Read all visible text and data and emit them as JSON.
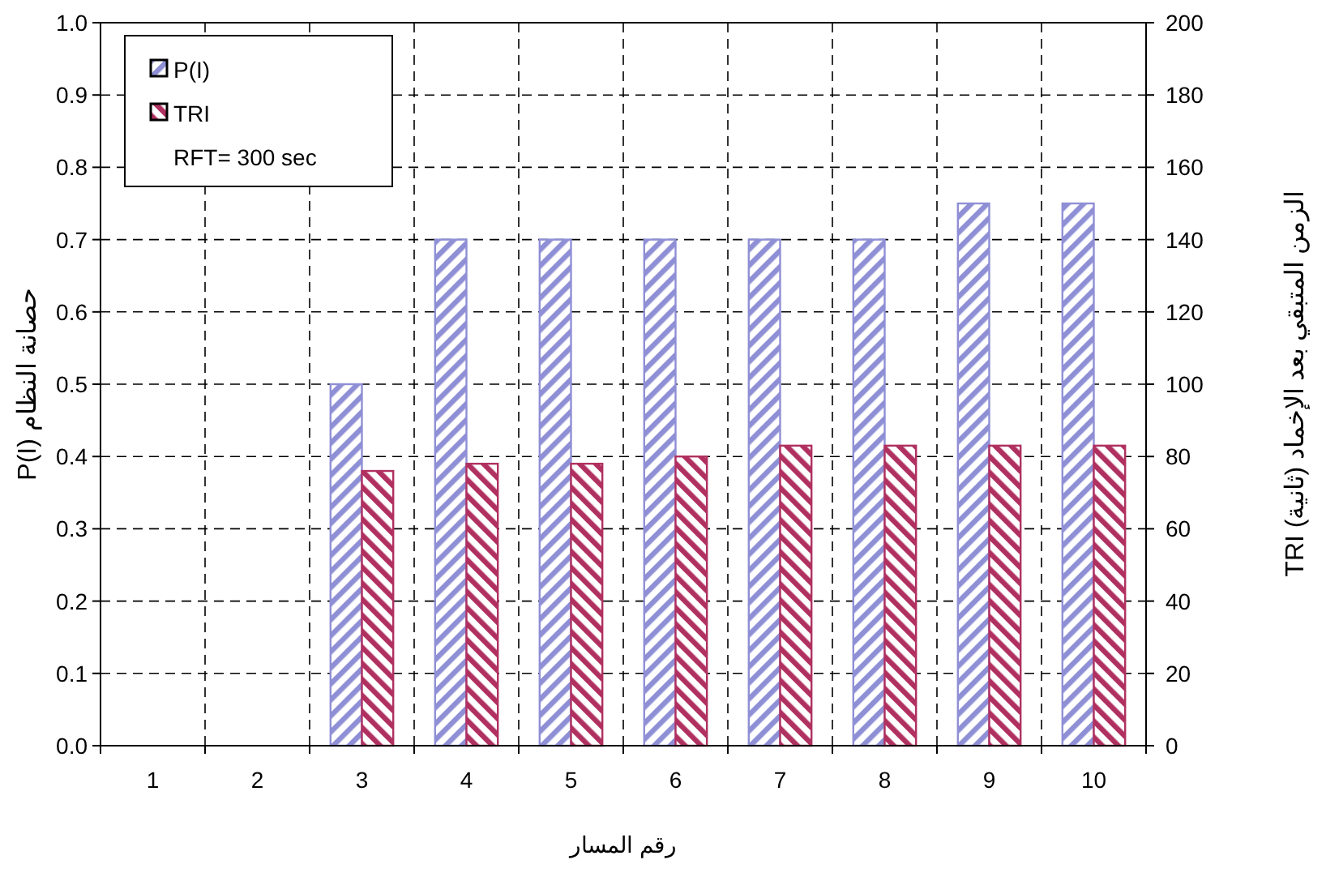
{
  "chart_data": {
    "type": "bar",
    "categories": [
      "1",
      "2",
      "3",
      "4",
      "5",
      "6",
      "7",
      "8",
      "9",
      "10"
    ],
    "series": [
      {
        "name": "P(I)",
        "color": "#8f8fd6",
        "values": [
          null,
          null,
          0.5,
          0.7,
          0.7,
          0.7,
          0.7,
          0.7,
          0.75,
          0.75
        ]
      },
      {
        "name": "TRI",
        "color": "#b03060",
        "axis": "y2",
        "values": [
          null,
          null,
          76,
          78,
          78,
          80,
          83,
          83,
          83,
          83
        ]
      }
    ],
    "xlabel": "رقم المسار",
    "ylabel": "P(I) حصانة النظام",
    "y2label": "الزمن المتبقي بعد الإخماد (ثانية) TRI",
    "ylim": [
      0,
      1
    ],
    "yticks": [
      {
        "value": 0,
        "label": "0.0"
      },
      {
        "value": 0.1,
        "label": "0.1"
      },
      {
        "value": 0.2,
        "label": "0.2"
      },
      {
        "value": 0.3,
        "label": "0.3"
      },
      {
        "value": 0.4,
        "label": "0.4"
      },
      {
        "value": 0.5,
        "label": "0.5"
      },
      {
        "value": 0.6,
        "label": "0.6"
      },
      {
        "value": 0.7,
        "label": "0.7"
      },
      {
        "value": 0.8,
        "label": "0.8"
      },
      {
        "value": 0.9,
        "label": "0.9"
      },
      {
        "value": 1,
        "label": "1.0"
      }
    ],
    "y2lim": [
      0,
      200
    ],
    "y2ticks": [
      0,
      20,
      40,
      60,
      80,
      100,
      120,
      140,
      160,
      180,
      200
    ],
    "annotations": [
      "RFT= 300 sec"
    ],
    "grid": true,
    "legend": "top left"
  }
}
